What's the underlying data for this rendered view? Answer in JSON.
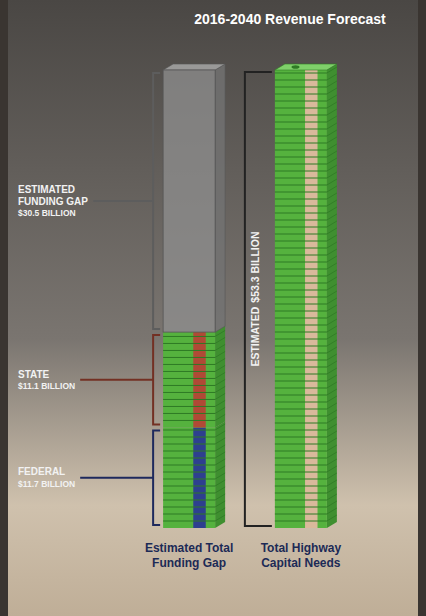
{
  "chart_data": {
    "type": "bar",
    "title": "2016-2040 Revenue Forecast",
    "categories": [
      "Estimated Total Funding Gap",
      "Total Highway Capital Needs"
    ],
    "stacked": true,
    "data_labels": true,
    "tick_labels": false,
    "series": [
      {
        "name": "FEDERAL",
        "color": "#2e3f8f",
        "values": [
          11.7,
          null
        ],
        "value_labels": [
          "$11.7 BILLION",
          null
        ]
      },
      {
        "name": "STATE",
        "color": "#b04a36",
        "values": [
          11.1,
          null
        ],
        "value_labels": [
          "$11.1 BILLION",
          null
        ]
      },
      {
        "name": "ESTIMATED FUNDING GAP",
        "color": "#8f8f8f",
        "values": [
          30.5,
          null
        ],
        "value_labels": [
          "$30.5 BILLION",
          null
        ]
      },
      {
        "name": "ESTIMATED",
        "color": "#d9b99b",
        "values": [
          null,
          53.3
        ],
        "value_labels": [
          null,
          "$53.3 BILLION"
        ]
      }
    ]
  }
}
